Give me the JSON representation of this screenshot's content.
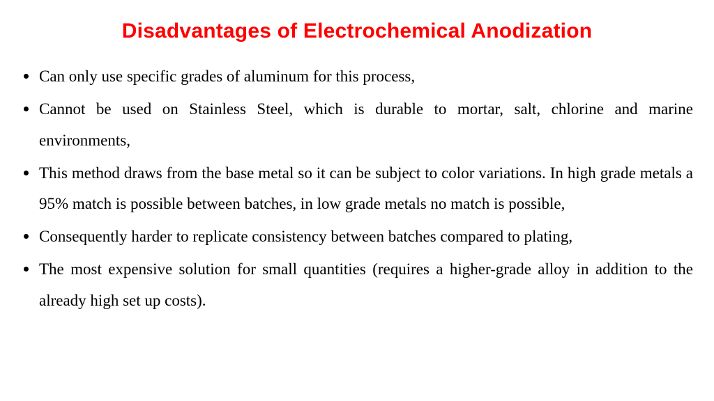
{
  "title": {
    "text": "Disadvantages of Electrochemical Anodization",
    "color": "#ff0000",
    "font_family": "Arial",
    "font_weight": 900,
    "font_size_pt": 22
  },
  "body": {
    "font_family": "Times New Roman",
    "font_size_pt": 17,
    "text_color": "#000000",
    "line_height": 1.95,
    "text_align": "justify"
  },
  "bullets": [
    "Can only use specific grades of aluminum for this process,",
    "Cannot be used on Stainless Steel, which is durable to mortar, salt, chlorine and marine environments,",
    "This method draws from the base metal so it can be subject to color variations. In high grade metals a 95% match is possible between batches, in low grade metals no match is possible,",
    "Consequently harder to replicate consistency between batches compared to plating,",
    "The most expensive solution for small quantities (requires a higher-grade alloy in addition to the already high set up costs)."
  ],
  "background_color": "#ffffff"
}
